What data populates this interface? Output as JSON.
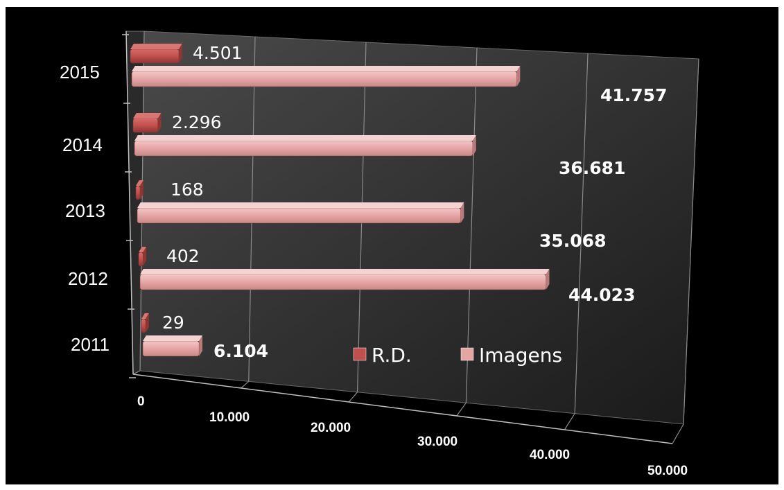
{
  "colors": {
    "background": "#000000",
    "rd_bar": "#c0504d",
    "images_bar": "#e6a5a5",
    "gridline": "#8a8a8a"
  },
  "chart_data": {
    "type": "bar",
    "orientation": "horizontal",
    "style": "3d",
    "categories": [
      "2015",
      "2014",
      "2013",
      "2012",
      "2011"
    ],
    "series": [
      {
        "name": "R.D.",
        "values": [
          4501,
          2296,
          168,
          402,
          29
        ],
        "labels": [
          "4.501",
          "2.296",
          "168",
          "402",
          "29"
        ]
      },
      {
        "name": "Imagens",
        "values": [
          41757,
          36681,
          35068,
          44023,
          6104
        ],
        "labels": [
          "41.757",
          "36.681",
          "35.068",
          "44.023",
          "6.104"
        ]
      }
    ],
    "xlim": [
      0,
      50000
    ],
    "x_ticks": [
      0,
      10000,
      20000,
      30000,
      40000,
      50000
    ],
    "x_tick_labels": [
      "0",
      "10.000",
      "20.000",
      "30.000",
      "40.000",
      "50.000"
    ],
    "grid": true,
    "legend": {
      "placement": "bottom-center",
      "entries": [
        "R.D.",
        "Imagens"
      ]
    }
  }
}
